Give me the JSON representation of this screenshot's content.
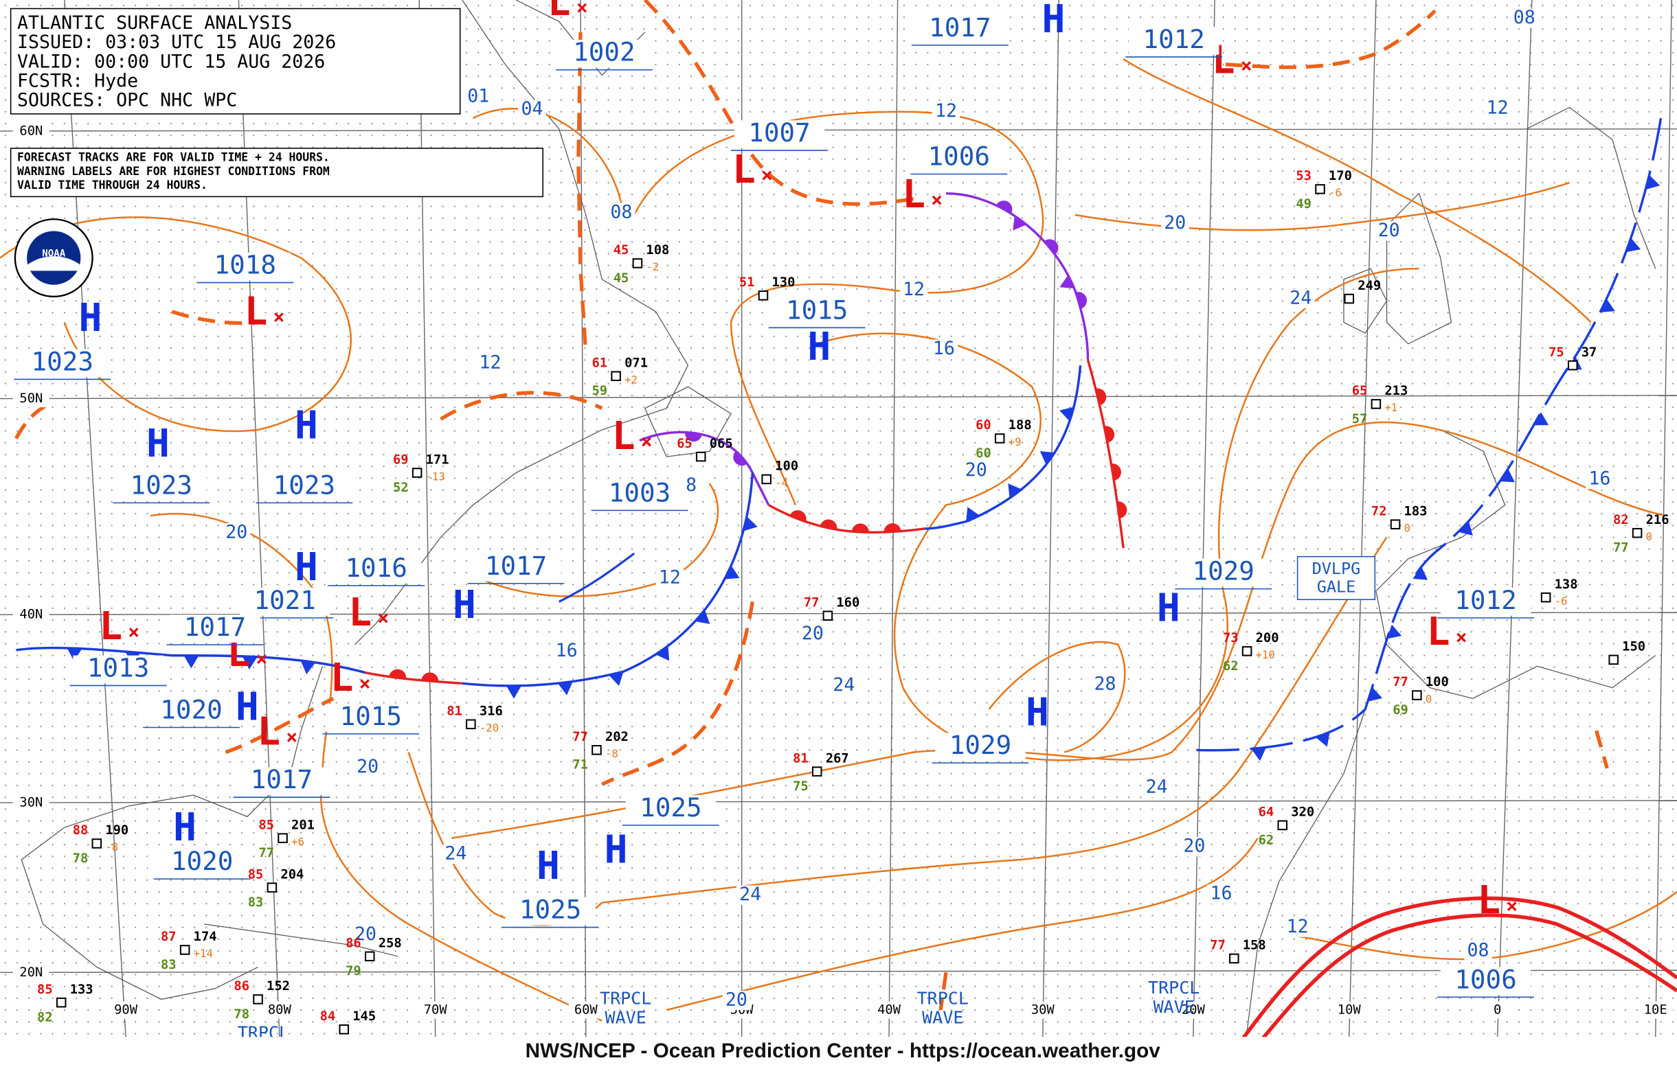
{
  "header": {
    "title": "ATLANTIC SURFACE ANALYSIS",
    "issued": "ISSUED: 03:03 UTC 15 AUG 2026",
    "valid": "VALID:  00:00 UTC 15 AUG 2026",
    "forecaster": "FCSTR:  Hyde",
    "sources": "SOURCES: OPC NHC WPC"
  },
  "notice": [
    "FORECAST TRACKS ARE FOR VALID TIME + 24 HOURS.",
    "WARNING LABELS ARE FOR HIGHEST CONDITIONS FROM",
    "VALID TIME THROUGH 24 HOURS."
  ],
  "logo": "NOAA",
  "footer": "NWS/NCEP - Ocean Prediction Center - https://ocean.weather.gov",
  "latitude_labels": [
    "60N",
    "50N",
    "40N",
    "30N",
    "20N"
  ],
  "longitude_labels": [
    "90W",
    "80W",
    "70W",
    "60W",
    "50W",
    "40W",
    "30W",
    "20W",
    "10W",
    "0",
    "10E"
  ],
  "pressure_centers": [
    {
      "symbol": "L",
      "pressure": 1002
    },
    {
      "symbol": "L",
      "pressure": 1007
    },
    {
      "symbol": "L",
      "pressure": 1006
    },
    {
      "symbol": "L",
      "pressure": 1012
    },
    {
      "symbol": "L",
      "pressure": 1018
    },
    {
      "symbol": "H",
      "pressure": 1023
    },
    {
      "symbol": "H",
      "pressure": 1017
    },
    {
      "symbol": "H",
      "pressure": 1015
    },
    {
      "symbol": "H",
      "pressure": 1023
    },
    {
      "symbol": "H",
      "pressure": 1023
    },
    {
      "symbol": "L",
      "pressure": 1003
    },
    {
      "symbol": "H",
      "pressure": 1017
    },
    {
      "symbol": "L",
      "pressure": 1016
    },
    {
      "symbol": "H",
      "pressure": 1021
    },
    {
      "symbol": "L",
      "pressure": 1013
    },
    {
      "symbol": "L",
      "pressure": 1017
    },
    {
      "symbol": "L",
      "pressure": 1015
    },
    {
      "symbol": "H",
      "pressure": 1020
    },
    {
      "symbol": "L",
      "pressure": 1017
    },
    {
      "symbol": "H",
      "pressure": 1020
    },
    {
      "symbol": "H",
      "pressure": 1029
    },
    {
      "symbol": "H",
      "pressure": 1029
    },
    {
      "symbol": "H",
      "pressure": 1025
    },
    {
      "symbol": "H",
      "pressure": 1025
    },
    {
      "symbol": "L",
      "pressure": 1012
    },
    {
      "symbol": "L",
      "pressure": 1006
    }
  ],
  "isobar_labels": [
    "01",
    "04",
    "08",
    "12",
    "12",
    "08",
    "20",
    "24",
    "20",
    "12",
    "16",
    "20",
    "12",
    "8",
    "12",
    "16",
    "20",
    "24",
    "28",
    "24",
    "20",
    "16",
    "12",
    "08",
    "16",
    "20",
    "20",
    "24",
    "24",
    "20",
    "20"
  ],
  "wave_labels": [
    [
      "TRPCL",
      "WAVE"
    ],
    [
      "TRPCL",
      "WAVE"
    ],
    [
      "TRPCL",
      "WAVE"
    ],
    [
      "TRPCL"
    ]
  ],
  "warnings": [
    [
      "DVLPG",
      "GALE"
    ]
  ],
  "stations": [
    {
      "temp": "45",
      "dew": "45",
      "pressure": "108",
      "tendency": "-2"
    },
    {
      "temp": "61",
      "dew": "59",
      "pressure": "071",
      "tendency": "+2"
    },
    {
      "temp": "69",
      "dew": "52",
      "pressure": "171",
      "tendency": "-13"
    },
    {
      "temp": "60",
      "dew": "60",
      "pressure": "188",
      "tendency": "+9"
    },
    {
      "temp": "53",
      "dew": "49",
      "pressure": "170",
      "tendency": "-6"
    },
    {
      "temp": "65",
      "dew": "57",
      "pressure": "213",
      "tendency": "+1"
    },
    {
      "pressure": "249"
    },
    {
      "temp": "72",
      "pressure": "183",
      "tendency": "0"
    },
    {
      "temp": "73",
      "dew": "62",
      "pressure": "200",
      "tendency": "+10"
    },
    {
      "temp": "77",
      "pressure": "160"
    },
    {
      "temp": "81",
      "dew": "75",
      "pressure": "267"
    },
    {
      "temp": "81",
      "pressure": "316",
      "tendency": "-20"
    },
    {
      "temp": "77",
      "dew": "71",
      "pressure": "202",
      "tendency": "-8"
    },
    {
      "temp": "64",
      "dew": "62",
      "pressure": "320"
    },
    {
      "temp": "77",
      "pressure": "158"
    },
    {
      "pressure": "138",
      "tendency": "-6"
    },
    {
      "temp": "82",
      "dew": "77",
      "pressure": "216",
      "tendency": "0"
    },
    {
      "pressure": "150"
    },
    {
      "temp": "77",
      "dew": "69",
      "pressure": "100",
      "tendency": "0"
    },
    {
      "temp": "85",
      "dew": "77",
      "pressure": "201",
      "tendency": "+6"
    },
    {
      "temp": "88",
      "dew": "78",
      "pressure": "190",
      "tendency": "-8"
    },
    {
      "temp": "85",
      "dew": "83",
      "pressure": "204"
    },
    {
      "temp": "85",
      "dew": "82",
      "pressure": "133"
    },
    {
      "temp": "87",
      "dew": "83",
      "pressure": "174",
      "tendency": "+14"
    },
    {
      "temp": "86",
      "dew": "79",
      "pressure": "258"
    },
    {
      "temp": "86",
      "dew": "78",
      "pressure": "152"
    },
    {
      "temp": "84",
      "pressure": "145"
    },
    {
      "temp": "75",
      "pressure": "37"
    },
    {
      "pressure": "100",
      "tendency": "-4"
    },
    {
      "temp": "65",
      "pressure": "065"
    },
    {
      "temp": "51",
      "pressure": "130"
    }
  ]
}
